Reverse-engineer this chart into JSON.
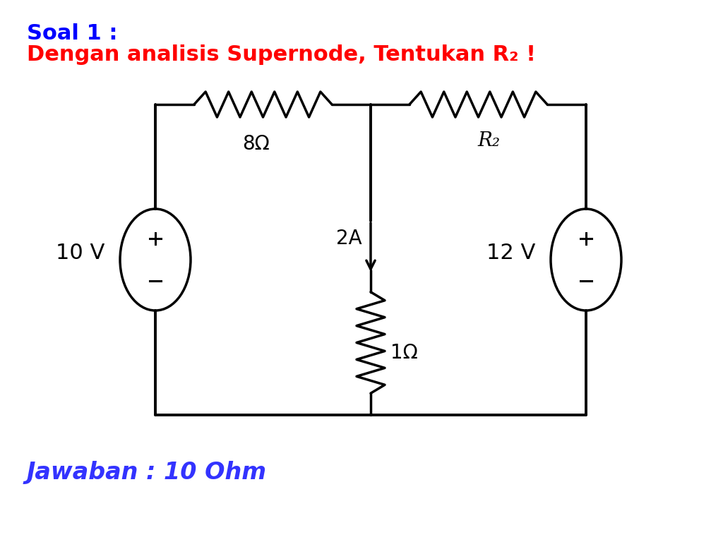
{
  "title_line1": "Soal 1 :",
  "title_line2": "Dengan analisis Supernode, Tentukan R₂ !",
  "answer_text": "Jawaban : 10 Ohm",
  "title_color": "#0000ff",
  "subtitle_color": "#ff0000",
  "answer_color": "#3333ff",
  "bg_color": "#ffffff",
  "label_8ohm": "8Ω",
  "label_R2": "R₂",
  "label_1ohm": "1Ω",
  "label_2A": "2A",
  "label_10V": "10 V",
  "label_12V": "12 V"
}
